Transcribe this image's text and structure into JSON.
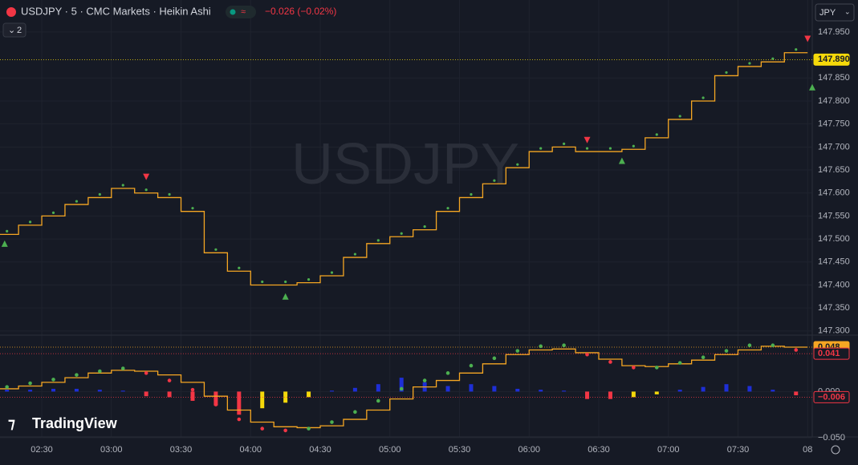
{
  "header": {
    "symbol": "USDJPY · 5 · CMC Markets · Heikin Ashi",
    "change": "−0.026 (−0.02%)",
    "currency": "JPY",
    "indicators_count": "2",
    "watermark": "USDJPY",
    "brand": "TradingView"
  },
  "chart_data": [
    {
      "type": "line",
      "x": [
        135,
        145,
        155,
        165,
        175,
        185,
        195,
        205,
        215,
        225,
        235,
        245,
        255,
        265,
        275,
        285,
        295,
        305,
        315,
        325,
        335,
        345,
        355,
        365,
        375,
        385,
        395,
        405,
        415,
        425,
        435,
        445,
        455,
        465,
        475
      ],
      "series": [
        {
          "color": "#f5a623",
          "marker_color": "#4caf50",
          "values": [
            147.51,
            147.53,
            147.55,
            147.575,
            147.59,
            147.61,
            147.6,
            147.59,
            147.56,
            147.47,
            147.43,
            147.4,
            147.4,
            147.405,
            147.42,
            147.46,
            147.49,
            147.505,
            147.52,
            147.56,
            147.59,
            147.62,
            147.655,
            147.69,
            147.7,
            147.69,
            147.69,
            147.695,
            147.72,
            147.76,
            147.8,
            147.855,
            147.875,
            147.885,
            147.905
          ]
        }
      ],
      "buy_signals": {
        "color": "#4caf50",
        "x": [
          134,
          255,
          400,
          482
        ],
        "values": [
          147.49,
          147.375,
          147.67,
          147.83
        ]
      },
      "sell_signals": {
        "color": "#f23645",
        "x": [
          195,
          385,
          480
        ],
        "values": [
          147.635,
          147.715,
          147.935
        ]
      },
      "last_label": {
        "value": 147.89,
        "label": "147.890"
      },
      "xlim": [
        132,
        482
      ],
      "ylim": [
        147.291,
        147.976
      ],
      "yticks": [
        {
          "value": 147.3,
          "label": "147.300"
        },
        {
          "value": 147.35,
          "label": "147.350"
        },
        {
          "value": 147.4,
          "label": "147.400"
        },
        {
          "value": 147.45,
          "label": "147.450"
        },
        {
          "value": 147.5,
          "label": "147.500"
        },
        {
          "value": 147.55,
          "label": "147.550"
        },
        {
          "value": 147.6,
          "label": "147.600"
        },
        {
          "value": 147.65,
          "label": "147.650"
        },
        {
          "value": 147.7,
          "label": "147.700"
        },
        {
          "value": 147.75,
          "label": "147.750"
        },
        {
          "value": 147.8,
          "label": "147.800"
        },
        {
          "value": 147.85,
          "label": "147.850"
        },
        {
          "value": 147.95,
          "label": "147.950"
        }
      ]
    },
    {
      "type": "line",
      "x": [
        135,
        145,
        155,
        165,
        175,
        185,
        195,
        205,
        215,
        225,
        235,
        245,
        255,
        265,
        275,
        285,
        295,
        305,
        315,
        325,
        335,
        345,
        355,
        365,
        375,
        385,
        395,
        405,
        415,
        425,
        435,
        445,
        455,
        465,
        475
      ],
      "series": [
        {
          "color": "#f5a623",
          "values": [
            0.003,
            0.006,
            0.01,
            0.015,
            0.02,
            0.023,
            0.022,
            0.018,
            0.01,
            -0.005,
            -0.02,
            -0.033,
            -0.038,
            -0.039,
            -0.037,
            -0.03,
            -0.02,
            -0.008,
            0.005,
            0.012,
            0.02,
            0.03,
            0.04,
            0.045,
            0.046,
            0.042,
            0.035,
            0.028,
            0.027,
            0.03,
            0.034,
            0.04,
            0.045,
            0.049,
            0.048
          ]
        }
      ],
      "dots": {
        "values": [
          0.005,
          0.009,
          0.013,
          0.018,
          0.022,
          0.025,
          0.02,
          0.012,
          0.002,
          -0.014,
          -0.03,
          -0.04,
          -0.042,
          -0.04,
          -0.033,
          -0.022,
          -0.01,
          0.003,
          0.012,
          0.02,
          0.028,
          0.036,
          0.044,
          0.049,
          0.05,
          0.04,
          0.032,
          0.026,
          0.026,
          0.031,
          0.037,
          0.044,
          0.05,
          0.05,
          0.045
        ],
        "colors": [
          "#4caf50",
          "#4caf50",
          "#4caf50",
          "#4caf50",
          "#4caf50",
          "#4caf50",
          "#f23645",
          "#f23645",
          "#f23645",
          "#f23645",
          "#f23645",
          "#f23645",
          "#f23645",
          "#4caf50",
          "#4caf50",
          "#4caf50",
          "#4caf50",
          "#4caf50",
          "#4caf50",
          "#4caf50",
          "#4caf50",
          "#4caf50",
          "#4caf50",
          "#4caf50",
          "#4caf50",
          "#f23645",
          "#f23645",
          "#f23645",
          "#4caf50",
          "#4caf50",
          "#4caf50",
          "#4caf50",
          "#4caf50",
          "#4caf50",
          "#f23645"
        ]
      },
      "bars": {
        "values": [
          0.002,
          0.002,
          0.003,
          0.003,
          0.002,
          0.001,
          -0.005,
          -0.006,
          -0.01,
          -0.015,
          -0.025,
          -0.018,
          -0.012,
          -0.006,
          0.001,
          0.004,
          0.008,
          0.015,
          0.01,
          0.006,
          0.008,
          0.006,
          0.003,
          0.002,
          0.001,
          -0.008,
          -0.008,
          -0.006,
          -0.003,
          0.002,
          0.005,
          0.008,
          0.006,
          0.002,
          -0.004
        ],
        "colors": [
          "#1e2fd6",
          "#1e2fd6",
          "#1e2fd6",
          "#1e2fd6",
          "#1e2fd6",
          "#1e2fd6",
          "#f23645",
          "#f23645",
          "#f23645",
          "#f23645",
          "#f23645",
          "#f5d90a",
          "#f5d90a",
          "#f5d90a",
          "#1e2fd6",
          "#1e2fd6",
          "#1e2fd6",
          "#1e2fd6",
          "#1e2fd6",
          "#1e2fd6",
          "#1e2fd6",
          "#1e2fd6",
          "#1e2fd6",
          "#1e2fd6",
          "#1e2fd6",
          "#f23645",
          "#f23645",
          "#f5d90a",
          "#f5d90a",
          "#1e2fd6",
          "#1e2fd6",
          "#1e2fd6",
          "#1e2fd6",
          "#1e2fd6",
          "#f23645"
        ]
      },
      "tags": [
        {
          "value": 0.048,
          "label": "0.048",
          "color": "#f5a623"
        },
        {
          "value": 0.041,
          "label": "0.041",
          "color": "#f23645"
        },
        {
          "value": -0.006,
          "label": "−0.006",
          "color": "#f23645"
        }
      ],
      "xlim": [
        132,
        482
      ],
      "xticks": [
        {
          "value": 150,
          "label": "02:30"
        },
        {
          "value": 180,
          "label": "03:00"
        },
        {
          "value": 210,
          "label": "03:30"
        },
        {
          "value": 240,
          "label": "04:00"
        },
        {
          "value": 270,
          "label": "04:30"
        },
        {
          "value": 300,
          "label": "05:00"
        },
        {
          "value": 330,
          "label": "05:30"
        },
        {
          "value": 360,
          "label": "06:00"
        },
        {
          "value": 390,
          "label": "06:30"
        },
        {
          "value": 420,
          "label": "07:00"
        },
        {
          "value": 450,
          "label": "07:30"
        },
        {
          "value": 480,
          "label": "08"
        }
      ],
      "ylim": [
        -0.062,
        0.061
      ],
      "yticks": [
        {
          "value": 0,
          "label": "0.000"
        },
        {
          "value": -0.05,
          "label": "−0.050"
        }
      ]
    }
  ]
}
